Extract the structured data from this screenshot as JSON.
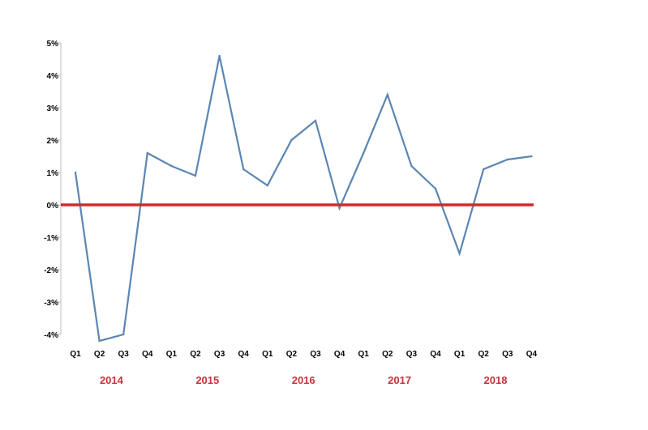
{
  "chart_data": {
    "type": "line",
    "title": "",
    "xlabel": "",
    "ylabel": "",
    "ylim": [
      -4,
      5
    ],
    "y_ticks": [
      "5%",
      "4%",
      "3%",
      "2%",
      "1%",
      "0%",
      "-1%",
      "-2%",
      "-3%",
      "-4%"
    ],
    "y_tick_values": [
      5,
      4,
      3,
      2,
      1,
      0,
      -1,
      -2,
      -3,
      -4
    ],
    "categories": [
      "Q1",
      "Q2",
      "Q3",
      "Q4",
      "Q1",
      "Q2",
      "Q3",
      "Q4",
      "Q1",
      "Q2",
      "Q3",
      "Q4",
      "Q1",
      "Q2",
      "Q3",
      "Q4",
      "Q1",
      "Q2",
      "Q3",
      "Q4"
    ],
    "years": [
      "2014",
      "2015",
      "2016",
      "2017",
      "2018"
    ],
    "series": [
      {
        "values": [
          1.0,
          -4.2,
          -4.0,
          1.6,
          1.2,
          0.9,
          4.6,
          1.1,
          0.6,
          2.0,
          2.6,
          -0.1,
          1.6,
          3.4,
          1.2,
          0.5,
          -1.5,
          1.1,
          1.4,
          1.5
        ]
      }
    ],
    "reference_line": 0,
    "grid": false,
    "legend": "none",
    "colors": {
      "series": "#5b86b2",
      "reference": "#d42a2a",
      "year_labels": "#c8323a",
      "axis": "#bfbfbf"
    }
  }
}
